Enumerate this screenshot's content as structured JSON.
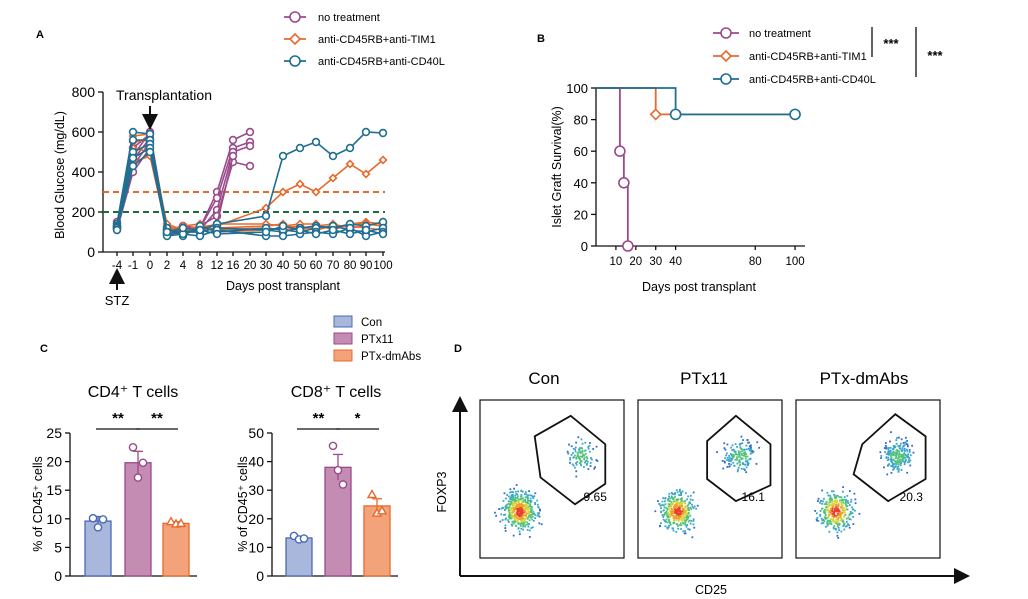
{
  "panel_letters": {
    "A": "A",
    "B": "B",
    "C": "C",
    "D": "D"
  },
  "colors": {
    "purple": "#9b4a8c",
    "orange": "#e8692e",
    "blue": "#1f6e93",
    "green": "#1e6b3c",
    "con": "#a9b7dc",
    "ptx11": "#c48bb3",
    "dmabs": "#f3a37a"
  },
  "chart_data": [
    {
      "id": "A",
      "type": "line",
      "ylabel": "Blood Glucose (mg/dL)",
      "xlabel": "Days post transplant",
      "ylim": [
        0,
        800
      ],
      "yticks": [
        0,
        200,
        400,
        600,
        800
      ],
      "xticks": [
        "-4",
        "-1",
        "0",
        "2",
        "4",
        "8",
        "12",
        "16",
        "20",
        "30",
        "40",
        "50",
        "60",
        "70",
        "80",
        "90",
        "100"
      ],
      "annotations": {
        "transplant": "Transplantation",
        "stz": "STZ"
      },
      "thresholds": [
        {
          "value": 300,
          "color": "orange"
        },
        {
          "value": 200,
          "color": "green"
        }
      ],
      "series": [
        {
          "name": "no treatment",
          "color": "purple",
          "marker": "circle",
          "curves": [
            {
              "x": [
                "-4",
                "-1",
                "0",
                "2",
                "4",
                "8",
                "12",
                "16",
                "20"
              ],
              "y": [
                150,
                480,
                600,
                100,
                120,
                120,
                300,
                560,
                600
              ]
            },
            {
              "x": [
                "-4",
                "-1",
                "0",
                "2",
                "4",
                "8",
                "12",
                "16",
                "20"
              ],
              "y": [
                130,
                520,
                590,
                110,
                130,
                120,
                270,
                520,
                550
              ]
            },
            {
              "x": [
                "-4",
                "-1",
                "0",
                "2",
                "4",
                "8",
                "12",
                "16",
                "20"
              ],
              "y": [
                120,
                460,
                570,
                90,
                110,
                110,
                210,
                500,
                530
              ]
            },
            {
              "x": [
                "-4",
                "-1",
                "0",
                "2",
                "4",
                "8",
                "12",
                "16",
                "20"
              ],
              "y": [
                110,
                400,
                520,
                95,
                110,
                130,
                180,
                450,
                430
              ]
            },
            {
              "x": [
                "-4",
                "-1",
                "0",
                "2",
                "4",
                "8",
                "12",
                "16"
              ],
              "y": [
                125,
                430,
                550,
                85,
                100,
                100,
                140,
                480
              ]
            }
          ]
        },
        {
          "name": "anti-CD45RB+anti-TIM1",
          "color": "orange",
          "marker": "diamond",
          "curves": [
            {
              "x": [
                "-4",
                "-1",
                "0",
                "2",
                "4",
                "8",
                "12",
                "30",
                "40",
                "50",
                "60",
                "70",
                "80",
                "90",
                "100"
              ],
              "y": [
                140,
                580,
                590,
                120,
                110,
                130,
                130,
                220,
                300,
                340,
                300,
                370,
                440,
                390,
                460
              ]
            },
            {
              "x": [
                "-4",
                "-1",
                "0",
                "2",
                "4",
                "8",
                "12",
                "30",
                "40",
                "50",
                "60",
                "70",
                "80",
                "90",
                "100"
              ],
              "y": [
                130,
                550,
                560,
                110,
                120,
                110,
                120,
                130,
                140,
                110,
                130,
                120,
                140,
                150,
                140
              ]
            },
            {
              "x": [
                "-4",
                "-1",
                "0",
                "2",
                "4",
                "8",
                "12",
                "30",
                "40",
                "50",
                "60",
                "70",
                "80",
                "90",
                "100"
              ],
              "y": [
                125,
                520,
                500,
                130,
                100,
                120,
                110,
                120,
                110,
                120,
                130,
                140,
                120,
                130,
                150
              ]
            },
            {
              "x": [
                "-4",
                "-1",
                "0",
                "2",
                "4",
                "8",
                "12",
                "30",
                "40",
                "50",
                "60",
                "70",
                "80",
                "90",
                "100"
              ],
              "y": [
                115,
                450,
                480,
                100,
                130,
                140,
                100,
                110,
                120,
                130,
                110,
                130,
                130,
                120,
                110
              ]
            },
            {
              "x": [
                "-4",
                "-1",
                "0",
                "2",
                "4",
                "8",
                "12",
                "30",
                "40",
                "50",
                "60",
                "70",
                "80",
                "90",
                "100"
              ],
              "y": [
                120,
                500,
                540,
                140,
                110,
                120,
                140,
                140,
                130,
                140,
                140,
                110,
                140,
                140,
                130
              ]
            }
          ]
        },
        {
          "name": "anti-CD45RB+anti-CD40L",
          "color": "blue",
          "marker": "circle",
          "curves": [
            {
              "x": [
                "-4",
                "-1",
                "0",
                "2",
                "4",
                "8",
                "12",
                "30",
                "40",
                "50",
                "60",
                "70",
                "80",
                "90",
                "100"
              ],
              "y": [
                140,
                600,
                590,
                110,
                100,
                110,
                140,
                180,
                480,
                520,
                550,
                480,
                520,
                600,
                595
              ]
            },
            {
              "x": [
                "-4",
                "-1",
                "0",
                "2",
                "4",
                "8",
                "12",
                "30",
                "40",
                "50",
                "60",
                "70",
                "80",
                "90",
                "100"
              ],
              "y": [
                130,
                560,
                560,
                90,
                100,
                100,
                120,
                110,
                100,
                120,
                130,
                120,
                140,
                130,
                150
              ]
            },
            {
              "x": [
                "-4",
                "-1",
                "0",
                "2",
                "4",
                "8",
                "12",
                "30",
                "40",
                "50",
                "60",
                "70",
                "80",
                "90",
                "100"
              ],
              "y": [
                125,
                500,
                540,
                120,
                80,
                130,
                100,
                120,
                110,
                100,
                120,
                130,
                110,
                100,
                120
              ]
            },
            {
              "x": [
                "-4",
                "-1",
                "0",
                "2",
                "4",
                "8",
                "12",
                "30",
                "40",
                "50",
                "60",
                "70",
                "80",
                "90",
                "100"
              ],
              "y": [
                120,
                470,
                520,
                80,
                90,
                80,
                110,
                80,
                80,
                90,
                100,
                90,
                120,
                80,
                100
              ]
            },
            {
              "x": [
                "-4",
                "-1",
                "0",
                "2",
                "4",
                "8",
                "12",
                "30",
                "40",
                "50",
                "60",
                "70",
                "80",
                "90",
                "100"
              ],
              "y": [
                110,
                430,
                500,
                100,
                120,
                110,
                90,
                100,
                130,
                110,
                90,
                110,
                90,
                110,
                90
              ]
            }
          ]
        }
      ]
    },
    {
      "id": "B",
      "type": "line",
      "ylabel": "Islet Graft Survival(%)",
      "xlabel": "Days post transplant",
      "ylim": [
        0,
        100
      ],
      "yticks": [
        0,
        20,
        40,
        60,
        80,
        100
      ],
      "xlim": [
        0,
        105
      ],
      "xticks": [
        10,
        20,
        30,
        40,
        80,
        100
      ],
      "significance": [
        "***",
        "***"
      ],
      "series": [
        {
          "name": "no treatment",
          "color": "purple",
          "marker": "circle",
          "steps": [
            [
              0,
              100
            ],
            [
              12,
              100
            ],
            [
              12,
              60
            ],
            [
              14,
              60
            ],
            [
              14,
              40
            ],
            [
              16,
              40
            ],
            [
              16,
              0
            ],
            [
              20,
              0
            ]
          ],
          "markers": [
            [
              12,
              60
            ],
            [
              14,
              40
            ],
            [
              16,
              0
            ]
          ]
        },
        {
          "name": "anti-CD45RB+anti-TIM1",
          "color": "orange",
          "marker": "diamond",
          "steps": [
            [
              0,
              100
            ],
            [
              30,
              100
            ],
            [
              30,
              83.3
            ],
            [
              100,
              83.3
            ]
          ],
          "markers": [
            [
              30,
              83.3
            ],
            [
              100,
              83.3
            ]
          ]
        },
        {
          "name": "anti-CD45RB+anti-CD40L",
          "color": "blue",
          "marker": "circle",
          "steps": [
            [
              0,
              100
            ],
            [
              40,
              100
            ],
            [
              40,
              83.3
            ],
            [
              100,
              83.3
            ]
          ],
          "markers": [
            [
              40,
              83.3
            ],
            [
              100,
              83.3
            ]
          ]
        }
      ]
    },
    {
      "id": "C",
      "type": "bar",
      "legend": [
        "Con",
        "PTx11",
        "PTx-dmAbs"
      ],
      "charts": [
        {
          "title": "CD4⁺ T cells",
          "ylabel": "% of CD45⁺ cells",
          "ylim": [
            0,
            25
          ],
          "yticks": [
            0,
            5,
            10,
            15,
            20,
            25
          ],
          "categories": [
            "Con",
            "PTx11",
            "PTx-dmAbs"
          ],
          "values": [
            9.6,
            19.8,
            9.2
          ],
          "errors": [
            0.8,
            2.0,
            0.3
          ],
          "points": [
            [
              10.1,
              8.5,
              9.9
            ],
            [
              22.5,
              17.2,
              19.8
            ],
            [
              9.5,
              9.1,
              9.2
            ]
          ],
          "significance": [
            {
              "label": "**",
              "from": 0,
              "to": 1
            },
            {
              "label": "**",
              "from": 1,
              "to": 2
            }
          ]
        },
        {
          "title": "CD8⁺ T cells",
          "ylabel": "% of CD45⁺ cells",
          "ylim": [
            0,
            50
          ],
          "yticks": [
            0,
            10,
            20,
            30,
            40,
            50
          ],
          "categories": [
            "Con",
            "PTx11",
            "PTx-dmAbs"
          ],
          "values": [
            13.3,
            38.0,
            24.5
          ],
          "errors": [
            0.5,
            4.5,
            2.5
          ],
          "points": [
            [
              14.0,
              12.8,
              13.1
            ],
            [
              45.5,
              37.0,
              32.0
            ],
            [
              28.5,
              22.0,
              22.8
            ]
          ],
          "significance": [
            {
              "label": "**",
              "from": 0,
              "to": 1
            },
            {
              "label": "*",
              "from": 1,
              "to": 2
            }
          ]
        }
      ]
    },
    {
      "id": "D",
      "type": "scatter",
      "ylabel": "FOXP3",
      "xlabel": "CD25",
      "panels": [
        {
          "title": "Con",
          "value": "9.65"
        },
        {
          "title": "PTx11",
          "value": "16.1"
        },
        {
          "title": "PTx-dmAbs",
          "value": "20.3"
        }
      ]
    }
  ]
}
